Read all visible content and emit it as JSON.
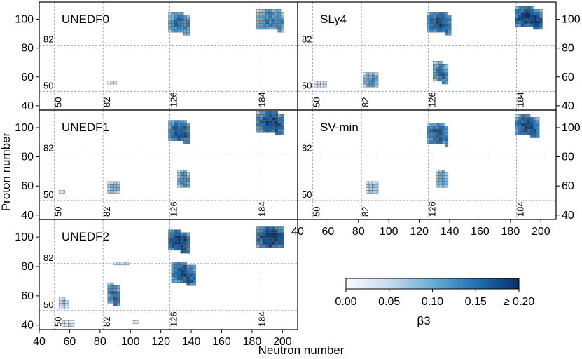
{
  "chart_data": {
    "type": "heatmap",
    "xlabel": "Neutron number",
    "ylabel": "Proton number",
    "x_range": [
      40,
      210
    ],
    "y_range": [
      37,
      112
    ],
    "x_ticks": [
      40,
      60,
      80,
      100,
      120,
      140,
      160,
      180,
      200
    ],
    "y_ticks": [
      40,
      60,
      80,
      100
    ],
    "magic_neutron": [
      50,
      82,
      126,
      184
    ],
    "magic_proton": [
      50,
      82
    ],
    "colorbar": {
      "label": "β3",
      "min": 0.0,
      "max": 0.2,
      "ticks": [
        "0.00",
        "0.05",
        "0.10",
        "0.15",
        "≥ 0.20"
      ],
      "colors": [
        "#f7fbff",
        "#c6dbef",
        "#6baed6",
        "#2171b5",
        "#08306b"
      ]
    },
    "panels": [
      {
        "name": "UNEDF0",
        "regions": [
          {
            "n_min": 126,
            "n_max": 138,
            "z_top": 104,
            "z_bottom": 86,
            "bottom_at_nmax": 86,
            "peak": 0.15
          },
          {
            "n_min": 184,
            "n_max": 200,
            "z_top": 106,
            "z_bottom": 86,
            "bottom_at_nmax": 86,
            "peak": 0.14
          },
          {
            "n_min": 86,
            "n_max": 90,
            "z_top": 56,
            "z_bottom": 56,
            "bottom_at_nmax": 56,
            "peak": 0.05
          }
        ]
      },
      {
        "name": "SLy4",
        "regions": [
          {
            "n_min": 126,
            "n_max": 140,
            "z_top": 104,
            "z_bottom": 86,
            "bottom_at_nmax": 86,
            "peak": 0.18
          },
          {
            "n_min": 184,
            "n_max": 200,
            "z_top": 108,
            "z_bottom": 84,
            "bottom_at_nmax": 84,
            "peak": 0.2
          },
          {
            "n_min": 130,
            "n_max": 138,
            "z_top": 70,
            "z_bottom": 56,
            "bottom_at_nmax": 56,
            "peak": 0.15
          },
          {
            "n_min": 84,
            "n_max": 92,
            "z_top": 62,
            "z_bottom": 54,
            "bottom_at_nmax": 54,
            "peak": 0.12
          },
          {
            "n_min": 52,
            "n_max": 58,
            "z_top": 56,
            "z_bottom": 54,
            "bottom_at_nmax": 54,
            "peak": 0.04
          }
        ]
      },
      {
        "name": "UNEDF1",
        "regions": [
          {
            "n_min": 126,
            "n_max": 138,
            "z_top": 104,
            "z_bottom": 88,
            "bottom_at_nmax": 88,
            "peak": 0.18
          },
          {
            "n_min": 184,
            "n_max": 200,
            "z_top": 110,
            "z_bottom": 88,
            "bottom_at_nmax": 88,
            "peak": 0.19
          },
          {
            "n_min": 132,
            "n_max": 138,
            "z_top": 70,
            "z_bottom": 60,
            "bottom_at_nmax": 60,
            "peak": 0.14
          },
          {
            "n_min": 86,
            "n_max": 92,
            "z_top": 62,
            "z_bottom": 56,
            "bottom_at_nmax": 56,
            "peak": 0.1
          },
          {
            "n_min": 54,
            "n_max": 56,
            "z_top": 56,
            "z_bottom": 56,
            "bottom_at_nmax": 56,
            "peak": 0.05
          }
        ]
      },
      {
        "name": "SV-min",
        "regions": [
          {
            "n_min": 126,
            "n_max": 138,
            "z_top": 102,
            "z_bottom": 88,
            "bottom_at_nmax": 88,
            "peak": 0.17
          },
          {
            "n_min": 184,
            "n_max": 198,
            "z_top": 108,
            "z_bottom": 86,
            "bottom_at_nmax": 86,
            "peak": 0.18
          },
          {
            "n_min": 132,
            "n_max": 138,
            "z_top": 70,
            "z_bottom": 60,
            "bottom_at_nmax": 60,
            "peak": 0.12
          },
          {
            "n_min": 86,
            "n_max": 92,
            "z_top": 62,
            "z_bottom": 56,
            "bottom_at_nmax": 56,
            "peak": 0.08
          }
        ]
      },
      {
        "name": "UNEDF2",
        "regions": [
          {
            "n_min": 126,
            "n_max": 138,
            "z_top": 104,
            "z_bottom": 82,
            "bottom_at_nmax": 82,
            "peak": 0.2
          },
          {
            "n_min": 128,
            "n_max": 142,
            "z_top": 82,
            "z_bottom": 60,
            "bottom_at_nmax": 60,
            "peak": 0.18
          },
          {
            "n_min": 184,
            "n_max": 200,
            "z_top": 106,
            "z_bottom": 90,
            "bottom_at_nmax": 90,
            "peak": 0.2
          },
          {
            "n_min": 86,
            "n_max": 92,
            "z_top": 68,
            "z_bottom": 54,
            "bottom_at_nmax": 54,
            "peak": 0.16
          },
          {
            "n_min": 90,
            "n_max": 98,
            "z_top": 82,
            "z_bottom": 82,
            "bottom_at_nmax": 82,
            "peak": 0.06
          },
          {
            "n_min": 54,
            "n_max": 58,
            "z_top": 58,
            "z_bottom": 52,
            "bottom_at_nmax": 52,
            "peak": 0.08
          },
          {
            "n_min": 56,
            "n_max": 62,
            "z_top": 42,
            "z_bottom": 40,
            "bottom_at_nmax": 40,
            "peak": 0.05
          },
          {
            "n_min": 102,
            "n_max": 104,
            "z_top": 42,
            "z_bottom": 42,
            "bottom_at_nmax": 42,
            "peak": 0.04
          }
        ]
      }
    ]
  }
}
